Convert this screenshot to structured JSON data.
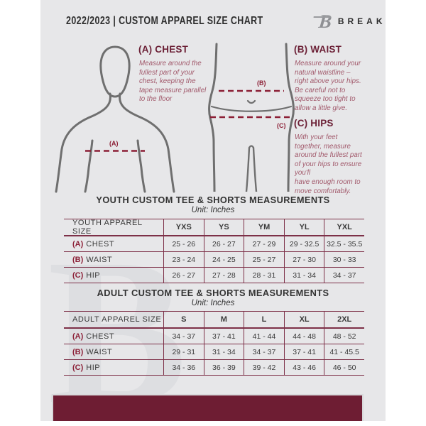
{
  "header": {
    "title": "2022/2023  |  CUSTOM APPAREL SIZE CHART",
    "brand": "BREAKAWAY",
    "logo_letter": "B"
  },
  "guide": {
    "chest": {
      "heading": "(A) CHEST",
      "marker": "(A)",
      "text": "Measure around the\nfullest part of your\nchest, keeping the\ntape measure parallel\nto the floor"
    },
    "waist": {
      "heading": "(B) WAIST",
      "marker": "(B)",
      "text": "Measure around your\nnatural waistline –\nright above your hips.\nBe careful not to\nsqueeze too tight to\nallow a little give."
    },
    "hips": {
      "heading": "(C) HIPS",
      "marker": "(C)",
      "text": "With your feet\ntogether, measure\naround the fullest part\nof your hips to ensure\nyou'll\nhave enough room to\nmove comfortably."
    }
  },
  "youth_table": {
    "title": "YOUTH CUSTOM TEE & SHORTS MEASUREMENTS",
    "unit": "Unit: Inches",
    "header": [
      "YOUTH APPAREL SIZE",
      "YXS",
      "YS",
      "YM",
      "YL",
      "YXL"
    ],
    "rows": [
      {
        "prefix": "(A)",
        "label": "CHEST",
        "values": [
          "25 - 26",
          "26 - 27",
          "27 - 29",
          "29 - 32.5",
          "32.5 - 35.5"
        ]
      },
      {
        "prefix": "(B)",
        "label": "WAIST",
        "values": [
          "23 - 24",
          "24 - 25",
          "25 - 27",
          "27 - 30",
          "30 - 33"
        ]
      },
      {
        "prefix": "(C)",
        "label": "HIP",
        "values": [
          "26 - 27",
          "27 - 28",
          "28 - 31",
          "31 - 34",
          "34 - 37"
        ]
      }
    ]
  },
  "adult_table": {
    "title": "ADULT CUSTOM TEE & SHORTS MEASUREMENTS",
    "unit": "Unit: Inches",
    "header": [
      "ADULT APPAREL SIZE",
      "S",
      "M",
      "L",
      "XL",
      "2XL"
    ],
    "rows": [
      {
        "prefix": "(A)",
        "label": "CHEST",
        "values": [
          "34 - 37",
          "37 - 41",
          "41 - 44",
          "44 - 48",
          "48 - 52"
        ]
      },
      {
        "prefix": "(B)",
        "label": "WAIST",
        "values": [
          "29 - 31",
          "31 - 34",
          "34 - 37",
          "37 - 41",
          "41 - 45.5"
        ]
      },
      {
        "prefix": "(C)",
        "label": "HIP",
        "values": [
          "34 - 36",
          "36 - 39",
          "39 - 42",
          "43 - 46",
          "46 - 50"
        ]
      }
    ]
  },
  "watermark_letter": "B",
  "colors": {
    "page_bg": "#e7e7e9",
    "maroon_dark": "#6e1d33",
    "maroon_line": "#8c1f35",
    "table_border": "#7d3048",
    "guide_text": "#a25a6c",
    "outline_gray": "#6f6f6f"
  }
}
